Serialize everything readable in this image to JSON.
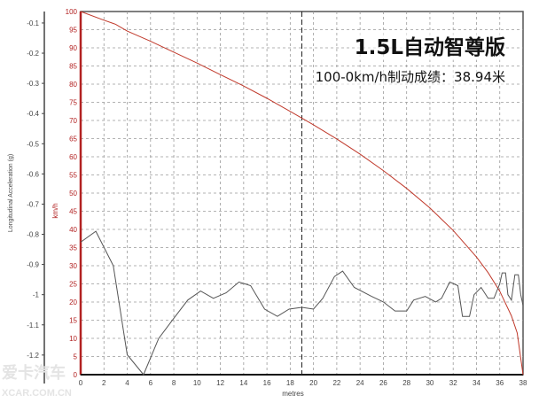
{
  "chart_data": {
    "type": "line",
    "title": "",
    "xlabel": "metres",
    "ylabel_left": "Longitudinal Acceleration (g)",
    "ylabel_right": "km/h",
    "xlim": [
      0,
      38
    ],
    "xticks": [
      0,
      2,
      4,
      6,
      8,
      10,
      12,
      14,
      16,
      18,
      20,
      22,
      24,
      26,
      28,
      30,
      32,
      34,
      36,
      38
    ],
    "speed_ylim": [
      0,
      100
    ],
    "speed_ticks": [
      0,
      5,
      10,
      15,
      20,
      25,
      30,
      35,
      40,
      45,
      50,
      55,
      60,
      65,
      70,
      75,
      80,
      85,
      90,
      95,
      100
    ],
    "accel_ylim": [
      -1.265,
      -0.062
    ],
    "accel_ticks": [
      -0.1,
      -0.2,
      -0.3,
      -0.4,
      -0.5,
      -0.6,
      -0.7,
      -0.8,
      -0.9,
      -1,
      -1.1,
      -1.2
    ],
    "grid": true,
    "marker_x": 19,
    "colors": {
      "speed": "#c0392b",
      "accel": "#555555",
      "speed_axis": "#b22222",
      "grid": "#9a9a9a"
    },
    "series": [
      {
        "axis": "speed",
        "x": [
          0,
          2,
          3,
          4,
          6,
          8,
          10,
          12,
          14,
          16,
          18,
          20,
          22,
          24,
          26,
          28,
          30,
          32,
          34,
          35,
          36,
          37,
          37.5,
          38
        ],
        "y": [
          100,
          97.6,
          96.5,
          94.6,
          91.8,
          88.8,
          85.8,
          82.6,
          79.5,
          76.1,
          72.5,
          68.8,
          64.9,
          60.7,
          56.2,
          51.3,
          45.9,
          39.7,
          32.4,
          28.1,
          23,
          16.2,
          11.5,
          0
        ]
      },
      {
        "axis": "accel",
        "x": [
          0,
          1.3,
          2.8,
          4,
          5.4,
          6.7,
          8,
          9.2,
          10.3,
          11.4,
          12.5,
          13.6,
          14.6,
          15.8,
          16.9,
          17.9,
          19,
          20,
          20.8,
          21.8,
          22.5,
          23.5,
          25,
          26,
          27,
          28,
          28.6,
          29.6,
          30.5,
          31,
          31.7,
          32.4,
          32.8,
          33.4,
          33.8,
          34.4,
          35,
          35.5,
          36,
          36.2,
          36.5,
          36.7,
          37,
          37.3,
          37.6,
          37.8,
          38
        ],
        "y": [
          -0.826,
          -0.79,
          -0.904,
          -1.199,
          -1.265,
          -1.145,
          -1.078,
          -1.018,
          -0.988,
          -1.012,
          -0.994,
          -0.958,
          -0.97,
          -1.048,
          -1.072,
          -1.048,
          -1.042,
          -1.048,
          -1.012,
          -0.94,
          -0.922,
          -0.976,
          -1.006,
          -1.024,
          -1.054,
          -1.054,
          -1.018,
          -1.006,
          -1.024,
          -1.012,
          -0.958,
          -0.97,
          -1.072,
          -1.072,
          -1,
          -0.976,
          -1.012,
          -1.012,
          -0.964,
          -0.928,
          -0.928,
          -1,
          -1.018,
          -0.934,
          -0.934,
          -1,
          -1.036
        ]
      }
    ],
    "annotations": [
      "1.5L自动智尊版",
      "100-0km/h制动成绩：38.94米"
    ]
  },
  "watermark": {
    "line1": "爱卡汽车",
    "line2": "XCAR.COM.CN"
  }
}
